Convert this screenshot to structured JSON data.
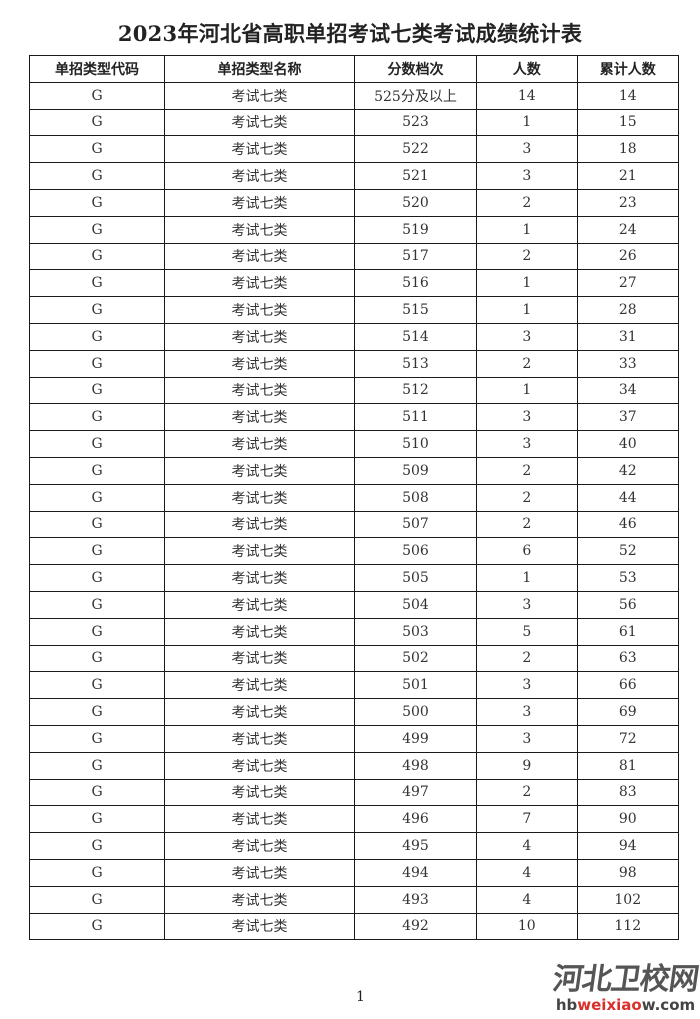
{
  "title": "2023年河北省高职单招考试七类考试成绩统计表",
  "table": {
    "headers": [
      "单招类型代码",
      "单招类型名称",
      "分数档次",
      "人数",
      "累计人数"
    ],
    "rows": [
      [
        "G",
        "考试七类",
        "525分及以上",
        "14",
        "14"
      ],
      [
        "G",
        "考试七类",
        "523",
        "1",
        "15"
      ],
      [
        "G",
        "考试七类",
        "522",
        "3",
        "18"
      ],
      [
        "G",
        "考试七类",
        "521",
        "3",
        "21"
      ],
      [
        "G",
        "考试七类",
        "520",
        "2",
        "23"
      ],
      [
        "G",
        "考试七类",
        "519",
        "1",
        "24"
      ],
      [
        "G",
        "考试七类",
        "517",
        "2",
        "26"
      ],
      [
        "G",
        "考试七类",
        "516",
        "1",
        "27"
      ],
      [
        "G",
        "考试七类",
        "515",
        "1",
        "28"
      ],
      [
        "G",
        "考试七类",
        "514",
        "3",
        "31"
      ],
      [
        "G",
        "考试七类",
        "513",
        "2",
        "33"
      ],
      [
        "G",
        "考试七类",
        "512",
        "1",
        "34"
      ],
      [
        "G",
        "考试七类",
        "511",
        "3",
        "37"
      ],
      [
        "G",
        "考试七类",
        "510",
        "3",
        "40"
      ],
      [
        "G",
        "考试七类",
        "509",
        "2",
        "42"
      ],
      [
        "G",
        "考试七类",
        "508",
        "2",
        "44"
      ],
      [
        "G",
        "考试七类",
        "507",
        "2",
        "46"
      ],
      [
        "G",
        "考试七类",
        "506",
        "6",
        "52"
      ],
      [
        "G",
        "考试七类",
        "505",
        "1",
        "53"
      ],
      [
        "G",
        "考试七类",
        "504",
        "3",
        "56"
      ],
      [
        "G",
        "考试七类",
        "503",
        "5",
        "61"
      ],
      [
        "G",
        "考试七类",
        "502",
        "2",
        "63"
      ],
      [
        "G",
        "考试七类",
        "501",
        "3",
        "66"
      ],
      [
        "G",
        "考试七类",
        "500",
        "3",
        "69"
      ],
      [
        "G",
        "考试七类",
        "499",
        "3",
        "72"
      ],
      [
        "G",
        "考试七类",
        "498",
        "9",
        "81"
      ],
      [
        "G",
        "考试七类",
        "497",
        "2",
        "83"
      ],
      [
        "G",
        "考试七类",
        "496",
        "7",
        "90"
      ],
      [
        "G",
        "考试七类",
        "495",
        "4",
        "94"
      ],
      [
        "G",
        "考试七类",
        "494",
        "4",
        "98"
      ],
      [
        "G",
        "考试七类",
        "493",
        "4",
        "102"
      ],
      [
        "G",
        "考试七类",
        "492",
        "10",
        "112"
      ]
    ]
  },
  "page_number": "1",
  "logo": {
    "cn": "河北卫校网",
    "en_prefix": "hb",
    "en_mid": "weixiao",
    "en_suffix": "w.com"
  },
  "colors": {
    "logo_accent": "#d9302b",
    "border": "#1a1a1a"
  }
}
